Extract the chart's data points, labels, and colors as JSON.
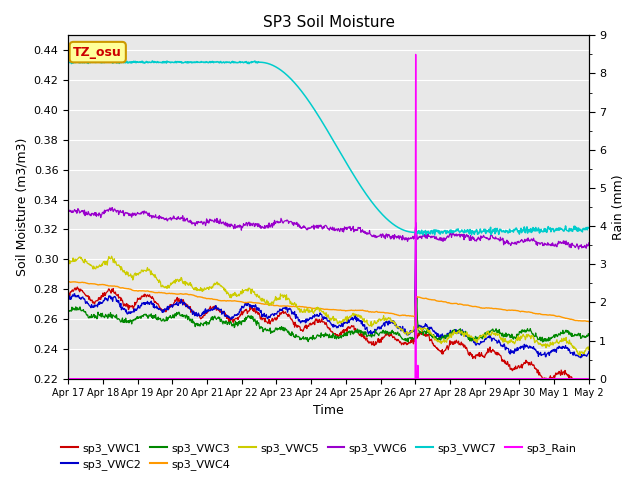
{
  "title": "SP3 Soil Moisture",
  "ylabel_left": "Soil Moisture (m3/m3)",
  "ylabel_right": "Rain (mm)",
  "xlabel": "Time",
  "tz_label": "TZ_osu",
  "ylim_left": [
    0.22,
    0.45
  ],
  "ylim_right": [
    0.0,
    9.0
  ],
  "yticks_left": [
    0.22,
    0.24,
    0.26,
    0.28,
    0.3,
    0.32,
    0.34,
    0.36,
    0.38,
    0.4,
    0.42,
    0.44
  ],
  "yticks_right": [
    0.0,
    1.0,
    2.0,
    3.0,
    4.0,
    5.0,
    6.0,
    7.0,
    8.0,
    9.0
  ],
  "background_color": "#e8e8e8",
  "plot_bg_color": "#e8e8e8",
  "colors": {
    "sp3_VWC1": "#cc0000",
    "sp3_VWC2": "#0000cc",
    "sp3_VWC3": "#008800",
    "sp3_VWC4": "#ff9900",
    "sp3_VWC5": "#cccc00",
    "sp3_VWC6": "#9900cc",
    "sp3_VWC7": "#00cccc",
    "sp3_Rain": "#ff00ff"
  },
  "n_points": 960,
  "date_labels": [
    "Apr 17",
    "Apr 18",
    "Apr 19",
    "Apr 20",
    "Apr 21",
    "Apr 22",
    "Apr 23",
    "Apr 24",
    "Apr 25",
    "Apr 26",
    "Apr 27",
    "Apr 28",
    "Apr 29",
    "Apr 30",
    "May 1",
    "May 2"
  ],
  "figsize": [
    6.4,
    4.8
  ],
  "dpi": 100
}
